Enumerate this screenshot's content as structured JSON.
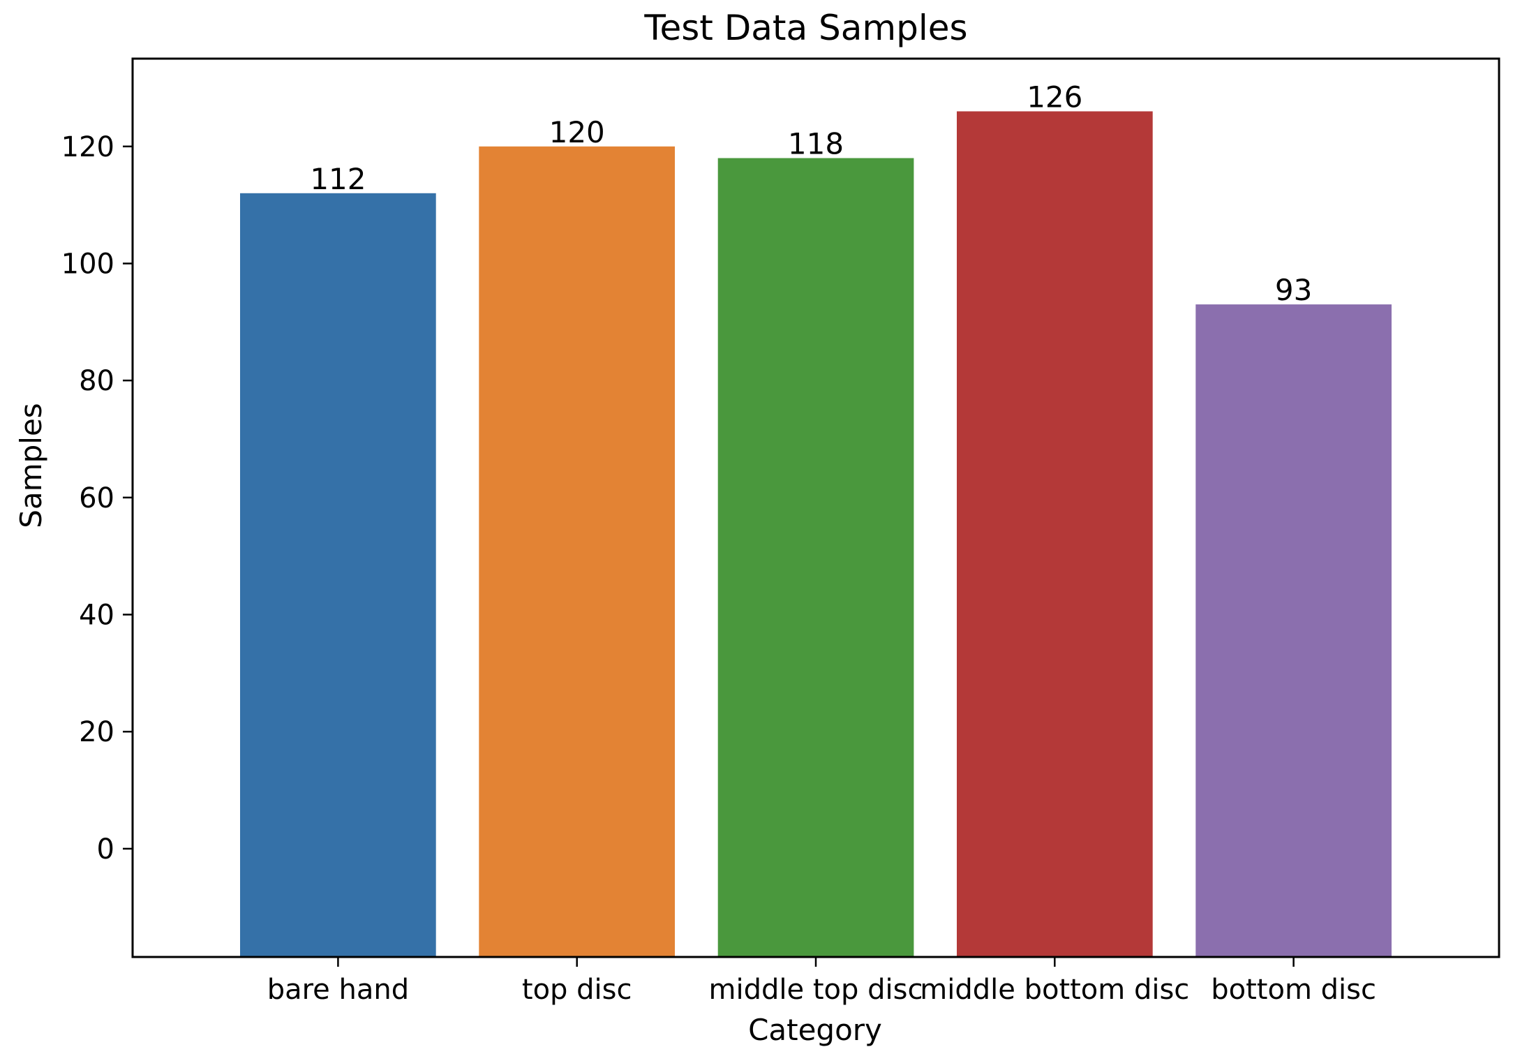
{
  "chart_data": {
    "type": "bar",
    "title": "Test Data Samples",
    "xlabel": "Category",
    "ylabel": "Samples",
    "categories": [
      "bare hand",
      "top disc",
      "middle top disc",
      "middle bottom disc",
      "bottom disc"
    ],
    "values": [
      112,
      120,
      118,
      126,
      93
    ],
    "data_labels": [
      "112",
      "120",
      "118",
      "126",
      "93"
    ],
    "colors": [
      "#3571a8",
      "#e38334",
      "#4a983d",
      "#b43938",
      "#8b6fae"
    ],
    "ylim": [
      -18.5,
      135
    ],
    "yticks": [
      0,
      20,
      40,
      60,
      80,
      100,
      120
    ],
    "grid": false,
    "legend": "none"
  }
}
